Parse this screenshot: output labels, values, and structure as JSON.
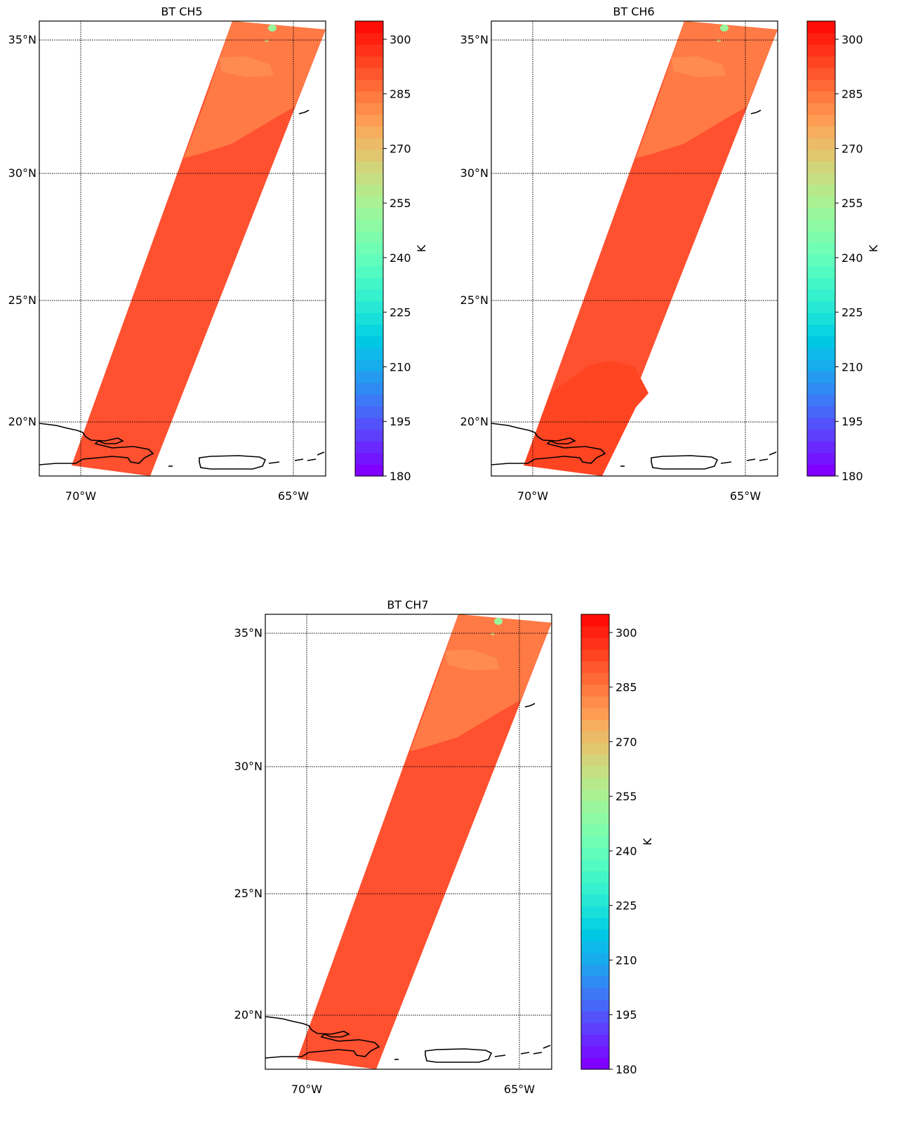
{
  "panels": [
    {
      "title": "BT CH5",
      "lat_labels": [
        "35°N",
        "30°N",
        "25°N",
        "20°N"
      ],
      "lon_labels": [
        "70°W",
        "65°W"
      ],
      "colorbar": {
        "label": "K",
        "ticks": [
          "300",
          "285",
          "270",
          "255",
          "240",
          "225",
          "210",
          "195",
          "180"
        ]
      }
    },
    {
      "title": "BT CH6",
      "lat_labels": [
        "35°N",
        "30°N",
        "25°N",
        "20°N"
      ],
      "lon_labels": [
        "70°W",
        "65°W"
      ],
      "colorbar": {
        "label": "K",
        "ticks": [
          "300",
          "285",
          "270",
          "255",
          "240",
          "225",
          "210",
          "195",
          "180"
        ]
      }
    },
    {
      "title": "BT CH7",
      "lat_labels": [
        "35°N",
        "30°N",
        "25°N",
        "20°N"
      ],
      "lon_labels": [
        "70°W",
        "65°W"
      ],
      "colorbar": {
        "label": "K",
        "ticks": [
          "300",
          "285",
          "270",
          "255",
          "240",
          "225",
          "210",
          "195",
          "180"
        ]
      }
    }
  ],
  "map_extent": {
    "lon_min": -71,
    "lon_max": -64.3,
    "lat_min": 17.9,
    "lat_max": 35.7
  },
  "colorbar_range": {
    "min": 180,
    "max": 305,
    "step": 5
  },
  "colormap": [
    "#7f00ff",
    "#7216ff",
    "#6a29fe",
    "#5e3ffd",
    "#5452fb",
    "#4767f9",
    "#3d78f7",
    "#2f8bf3",
    "#259bf0",
    "#17acec",
    "#0ebae9",
    "#00c8e4",
    "#09d4df",
    "#19dfda",
    "#26e8d4",
    "#35f1ce",
    "#42f6c8",
    "#52fbc1",
    "#60fdbb",
    "#6ffeb3",
    "#7dfdac",
    "#8dfaa3",
    "#9af69c",
    "#aaf193",
    "#b7e98b",
    "#c6df82",
    "#d2d47a",
    "#e1c76f",
    "#ebbb67",
    "#f6ad5d",
    "#fe9c53",
    "#ff8c4a",
    "#ff7b40",
    "#ff6936",
    "#ff572d",
    "#ff4422",
    "#ff3219",
    "#ff2010",
    "#ff0d06"
  ],
  "swath_colors": {
    "main": "#ff5030",
    "warm_patch": "#ff7a45",
    "cold_edge": "#ff6038"
  },
  "grid": true,
  "coastline_color": "#000000"
}
